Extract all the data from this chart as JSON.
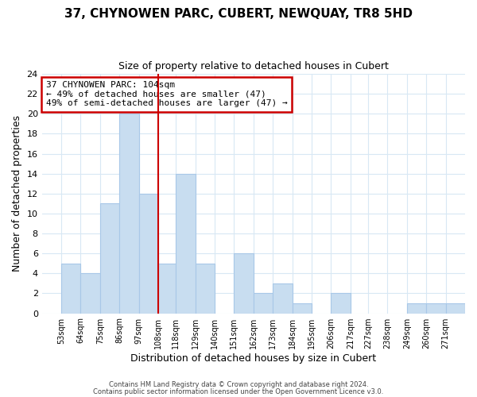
{
  "title": "37, CHYNOWEN PARC, CUBERT, NEWQUAY, TR8 5HD",
  "subtitle": "Size of property relative to detached houses in Cubert",
  "xlabel": "Distribution of detached houses by size in Cubert",
  "ylabel": "Number of detached properties",
  "bin_left_edges": [
    53,
    64,
    75,
    86,
    97,
    108,
    118,
    129,
    140,
    151,
    162,
    173,
    184,
    195,
    206,
    217,
    227,
    238,
    249,
    260,
    271
  ],
  "bin_widths": [
    11,
    11,
    11,
    11,
    11,
    10,
    11,
    11,
    11,
    11,
    11,
    11,
    11,
    11,
    11,
    10,
    11,
    11,
    11,
    11,
    11
  ],
  "counts": [
    5,
    4,
    11,
    20,
    12,
    5,
    14,
    5,
    0,
    6,
    2,
    3,
    1,
    0,
    2,
    0,
    0,
    0,
    1,
    1,
    1
  ],
  "bar_color": "#c8ddf0",
  "bar_edge_color": "#a8c8e8",
  "red_line_x": 108,
  "xlim": [
    42,
    282
  ],
  "ylim": [
    0,
    24
  ],
  "yticks": [
    0,
    2,
    4,
    6,
    8,
    10,
    12,
    14,
    16,
    18,
    20,
    22,
    24
  ],
  "tick_labels": [
    "53sqm",
    "64sqm",
    "75sqm",
    "86sqm",
    "97sqm",
    "108sqm",
    "118sqm",
    "129sqm",
    "140sqm",
    "151sqm",
    "162sqm",
    "173sqm",
    "184sqm",
    "195sqm",
    "206sqm",
    "217sqm",
    "227sqm",
    "238sqm",
    "249sqm",
    "260sqm",
    "271sqm"
  ],
  "tick_positions": [
    53,
    64,
    75,
    86,
    97,
    108,
    118,
    129,
    140,
    151,
    162,
    173,
    184,
    195,
    206,
    217,
    227,
    238,
    249,
    260,
    271
  ],
  "annotation_lines": [
    "37 CHYNOWEN PARC: 104sqm",
    "← 49% of detached houses are smaller (47)",
    "49% of semi-detached houses are larger (47) →"
  ],
  "footer_line1": "Contains HM Land Registry data © Crown copyright and database right 2024.",
  "footer_line2": "Contains public sector information licensed under the Open Government Licence v3.0.",
  "background_color": "#ffffff",
  "grid_color": "#d8e8f4",
  "annotation_box_color": "#ffffff",
  "annotation_box_edge_color": "#cc0000"
}
